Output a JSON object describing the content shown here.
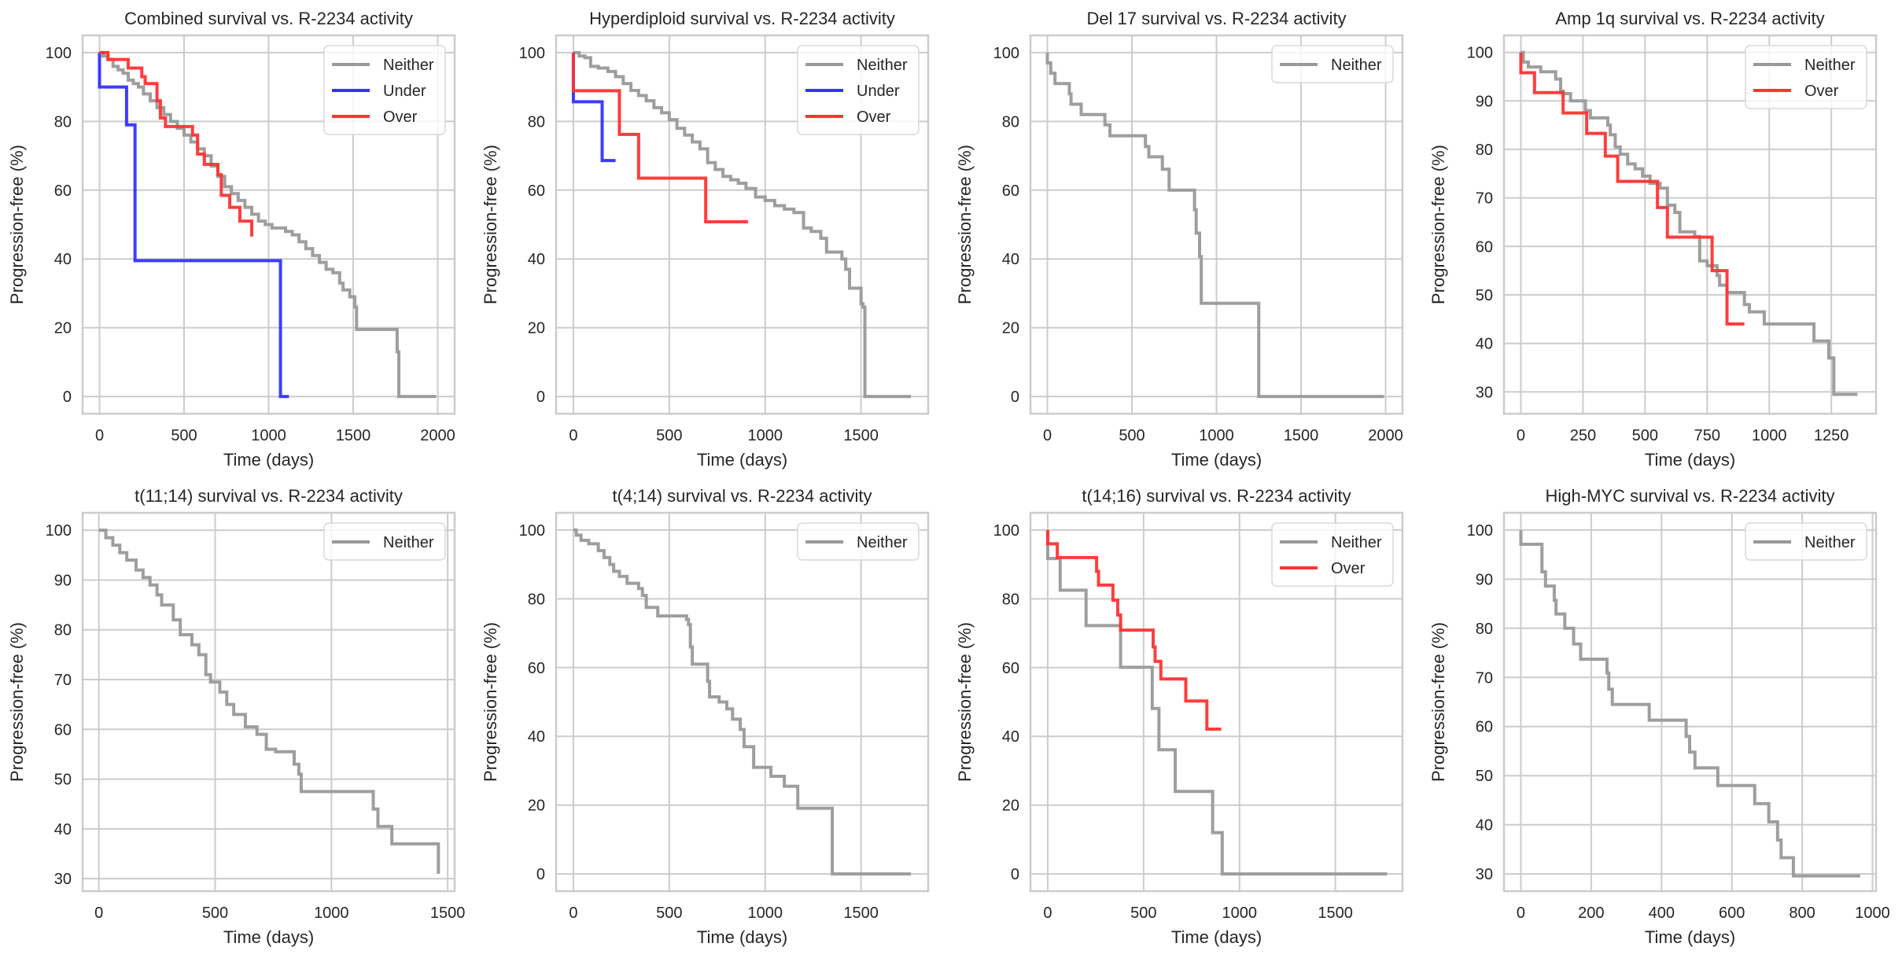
{
  "figure": {
    "common_xlabel": "Time (days)",
    "common_ylabel": "Progression-free (%)"
  },
  "colors": {
    "Neither": "#999999",
    "Under": "#3333ff",
    "Over": "#ff3333"
  },
  "chart_data": [
    {
      "type": "line",
      "title": "Combined survival vs. R-2234 activity",
      "xlabel": "Time (days)",
      "ylabel": "Progression-free (%)",
      "xlim": [
        -100,
        2100
      ],
      "ylim": [
        -5,
        105
      ],
      "xticks": [
        0,
        500,
        1000,
        1500,
        2000
      ],
      "yticks": [
        0,
        20,
        40,
        60,
        80,
        100
      ],
      "grid": true,
      "legend": "top-right",
      "series": [
        {
          "name": "Neither",
          "step": true,
          "x": [
            0,
            20,
            50,
            80,
            110,
            140,
            170,
            200,
            230,
            260,
            300,
            340,
            380,
            420,
            460,
            500,
            540,
            580,
            620,
            660,
            700,
            740,
            780,
            820,
            860,
            900,
            940,
            980,
            1020,
            1060,
            1100,
            1140,
            1180,
            1220,
            1260,
            1300,
            1340,
            1380,
            1420,
            1440,
            1480,
            1510,
            1520,
            1760,
            1770,
            1990
          ],
          "y": [
            100,
            99,
            98,
            96,
            95,
            94,
            92,
            91,
            90,
            88,
            86,
            84,
            82,
            80,
            78,
            76,
            74,
            72,
            70,
            67,
            64,
            61,
            59,
            57,
            55,
            53,
            51,
            50,
            49,
            49,
            48,
            47,
            45,
            43,
            41,
            39,
            37,
            36,
            33,
            31,
            29,
            26,
            19.5,
            13,
            0,
            0
          ]
        },
        {
          "name": "Under",
          "step": true,
          "x": [
            0,
            0,
            160,
            210,
            1070,
            1120
          ],
          "y": [
            100,
            90,
            79,
            39.5,
            0,
            0
          ]
        },
        {
          "name": "Over",
          "step": true,
          "x": [
            0,
            50,
            170,
            250,
            270,
            340,
            360,
            390,
            550,
            580,
            620,
            700,
            720,
            770,
            830,
            900,
            900
          ],
          "y": [
            100,
            98,
            95.5,
            93,
            91,
            86,
            81,
            78.5,
            76,
            70.5,
            67.5,
            64.5,
            58.5,
            55,
            51,
            51,
            46.5
          ]
        }
      ]
    },
    {
      "type": "line",
      "title": "Hyperdiploid survival vs. R-2234 activity",
      "xlabel": "Time (days)",
      "ylabel": "Progression-free (%)",
      "xlim": [
        -90,
        1850
      ],
      "ylim": [
        -5,
        105
      ],
      "xticks": [
        0,
        500,
        1000,
        1500
      ],
      "yticks": [
        0,
        20,
        40,
        60,
        80,
        100
      ],
      "grid": true,
      "legend": "top-right",
      "series": [
        {
          "name": "Neither",
          "step": true,
          "x": [
            0,
            30,
            60,
            90,
            130,
            180,
            220,
            260,
            300,
            340,
            380,
            420,
            460,
            500,
            540,
            580,
            620,
            660,
            700,
            740,
            780,
            820,
            860,
            900,
            950,
            1000,
            1050,
            1100,
            1150,
            1200,
            1240,
            1290,
            1320,
            1400,
            1420,
            1440,
            1500,
            1510,
            1520,
            1760
          ],
          "y": [
            100,
            99,
            98.5,
            96,
            95.5,
            94.5,
            93,
            91,
            89,
            87.5,
            86,
            84,
            82.5,
            80.5,
            78,
            76,
            74,
            72,
            68,
            66,
            64,
            63,
            62,
            60.5,
            58,
            57,
            55.5,
            54.5,
            53.5,
            49,
            48,
            46,
            42,
            40,
            37,
            31.5,
            27,
            26,
            0,
            0
          ]
        },
        {
          "name": "Under",
          "step": true,
          "x": [
            0,
            0,
            150,
            220
          ],
          "y": [
            100,
            85.7,
            68.6,
            68.6
          ]
        },
        {
          "name": "Over",
          "step": true,
          "x": [
            0,
            0,
            240,
            340,
            690,
            910
          ],
          "y": [
            100,
            88.9,
            76.2,
            63.5,
            50.8,
            50.8
          ]
        }
      ]
    },
    {
      "type": "line",
      "title": "Del 17 survival vs. R-2234 activity",
      "xlabel": "Time (days)",
      "ylabel": "Progression-free (%)",
      "xlim": [
        -100,
        2100
      ],
      "ylim": [
        -5,
        105
      ],
      "xticks": [
        0,
        500,
        1000,
        1500,
        2000
      ],
      "yticks": [
        0,
        20,
        40,
        60,
        80,
        100
      ],
      "grid": true,
      "legend": "top-right",
      "series": [
        {
          "name": "Neither",
          "step": true,
          "x": [
            0,
            0,
            20,
            45,
            130,
            140,
            200,
            340,
            370,
            580,
            600,
            680,
            720,
            870,
            880,
            900,
            910,
            1250,
            1990
          ],
          "y": [
            100,
            97,
            94,
            91,
            88,
            85,
            82,
            79,
            75.8,
            72.7,
            69.7,
            66.1,
            60,
            54.3,
            47.5,
            40.7,
            27.1,
            0,
            0
          ]
        }
      ]
    },
    {
      "type": "line",
      "title": "Amp 1q survival vs. R-2234 activity",
      "xlabel": "Time (days)",
      "ylabel": "Progression-free (%)",
      "xlim": [
        -68,
        1430
      ],
      "ylim": [
        25.5,
        103.5
      ],
      "xticks": [
        0,
        250,
        500,
        750,
        1000,
        1250
      ],
      "yticks": [
        30,
        40,
        50,
        60,
        70,
        80,
        90,
        100
      ],
      "grid": true,
      "legend": "top-right",
      "series": [
        {
          "name": "Neither",
          "step": true,
          "x": [
            0,
            10,
            30,
            80,
            140,
            160,
            170,
            200,
            260,
            280,
            350,
            360,
            380,
            400,
            430,
            460,
            490,
            520,
            560,
            590,
            620,
            640,
            700,
            720,
            750,
            790,
            800,
            830,
            900,
            920,
            980,
            1180,
            1240,
            1260,
            1355
          ],
          "y": [
            100,
            98,
            97,
            96,
            94.5,
            92,
            91.5,
            90,
            88,
            86.5,
            85,
            83,
            80.5,
            79,
            77,
            76,
            74.5,
            73,
            72,
            68.5,
            67,
            63,
            62,
            57,
            56,
            54,
            52,
            50.5,
            48,
            46.5,
            44,
            40.5,
            37,
            29.5,
            29.5
          ]
        },
        {
          "name": "Over",
          "step": true,
          "x": [
            0,
            0,
            55,
            170,
            265,
            340,
            390,
            550,
            590,
            770,
            830,
            900
          ],
          "y": [
            100,
            95.8,
            91.7,
            87.5,
            83.3,
            78.6,
            73.4,
            68,
            61.9,
            55,
            44,
            44
          ]
        }
      ]
    },
    {
      "type": "line",
      "title": "t(11;14) survival vs. R-2234 activity",
      "xlabel": "Time (days)",
      "ylabel": "Progression-free (%)",
      "xlim": [
        -70,
        1530
      ],
      "ylim": [
        27.5,
        103.5
      ],
      "xticks": [
        0,
        500,
        1000,
        1500
      ],
      "yticks": [
        30,
        40,
        50,
        60,
        70,
        80,
        90,
        100
      ],
      "grid": true,
      "legend": "top-right",
      "series": [
        {
          "name": "Neither",
          "step": true,
          "x": [
            0,
            30,
            60,
            90,
            120,
            160,
            190,
            220,
            250,
            270,
            320,
            350,
            400,
            430,
            460,
            480,
            520,
            550,
            580,
            630,
            680,
            720,
            760,
            840,
            860,
            870,
            1130,
            1180,
            1200,
            1260,
            1460
          ],
          "y": [
            100,
            98.5,
            97,
            95.5,
            94,
            92,
            90.5,
            89,
            87,
            85,
            82,
            79,
            77,
            75,
            71,
            69.5,
            67.5,
            65,
            63,
            60.5,
            59,
            56,
            55.5,
            53,
            51,
            47.5,
            47.5,
            44,
            40.5,
            37,
            31
          ]
        }
      ]
    },
    {
      "type": "line",
      "title": "t(4;14) survival vs. R-2234 activity",
      "xlabel": "Time (days)",
      "ylabel": "Progression-free (%)",
      "xlim": [
        -90,
        1850
      ],
      "ylim": [
        -5,
        105
      ],
      "xticks": [
        0,
        500,
        1000,
        1500
      ],
      "yticks": [
        0,
        20,
        40,
        60,
        80,
        100
      ],
      "grid": true,
      "legend": "top-right",
      "series": [
        {
          "name": "Neither",
          "step": true,
          "x": [
            0,
            15,
            40,
            80,
            130,
            160,
            190,
            210,
            240,
            280,
            340,
            360,
            380,
            440,
            590,
            600,
            610,
            620,
            700,
            710,
            760,
            800,
            830,
            870,
            890,
            940,
            1030,
            1100,
            1170,
            1350,
            1760
          ],
          "y": [
            100,
            98.5,
            97,
            96,
            94,
            92,
            90,
            88,
            86.5,
            84.5,
            83,
            81,
            77.5,
            75,
            74,
            72.5,
            66,
            61,
            56,
            51.5,
            50,
            48,
            45,
            42,
            37,
            31,
            28.4,
            25.5,
            19.1,
            0,
            0
          ]
        }
      ]
    },
    {
      "type": "line",
      "title": "t(14;16) survival vs. R-2234 activity",
      "xlabel": "Time (days)",
      "ylabel": "Progression-free (%)",
      "xlim": [
        -90,
        1850
      ],
      "ylim": [
        -5,
        105
      ],
      "xticks": [
        0,
        500,
        1000,
        1500
      ],
      "yticks": [
        0,
        20,
        40,
        60,
        80,
        100
      ],
      "grid": true,
      "legend": "top-right",
      "series": [
        {
          "name": "Neither",
          "step": true,
          "x": [
            0,
            0,
            65,
            200,
            380,
            545,
            580,
            665,
            860,
            910,
            1770
          ],
          "y": [
            100,
            91.7,
            82.5,
            72.2,
            60.1,
            48.1,
            36.1,
            24,
            12,
            0,
            0
          ]
        },
        {
          "name": "Over",
          "step": true,
          "x": [
            0,
            0,
            50,
            255,
            265,
            340,
            365,
            380,
            550,
            560,
            590,
            720,
            830,
            905
          ],
          "y": [
            100,
            96,
            92,
            88,
            84,
            79.6,
            75.3,
            70.9,
            66,
            61.8,
            56.7,
            50.3,
            42.1,
            42.1
          ]
        }
      ]
    },
    {
      "type": "line",
      "title": "High-MYC survival vs. R-2234 activity",
      "xlabel": "Time (days)",
      "ylabel": "Progression-free (%)",
      "xlim": [
        -48,
        1010
      ],
      "ylim": [
        26.5,
        103.5
      ],
      "xticks": [
        0,
        200,
        400,
        600,
        800,
        1000
      ],
      "yticks": [
        30,
        40,
        50,
        60,
        70,
        80,
        90,
        100
      ],
      "grid": true,
      "legend": "top-right",
      "series": [
        {
          "name": "Neither",
          "step": true,
          "x": [
            0,
            0,
            60,
            70,
            95,
            100,
            125,
            150,
            170,
            245,
            250,
            260,
            365,
            470,
            480,
            495,
            560,
            665,
            705,
            730,
            740,
            775,
            965
          ],
          "y": [
            100,
            97.1,
            91.5,
            88.6,
            85.7,
            82.9,
            80,
            76.8,
            73.7,
            70.9,
            67.6,
            64.5,
            61.3,
            58,
            54.8,
            51.6,
            48,
            44.3,
            40.6,
            36.9,
            33.3,
            29.6,
            29.6
          ]
        }
      ]
    }
  ]
}
